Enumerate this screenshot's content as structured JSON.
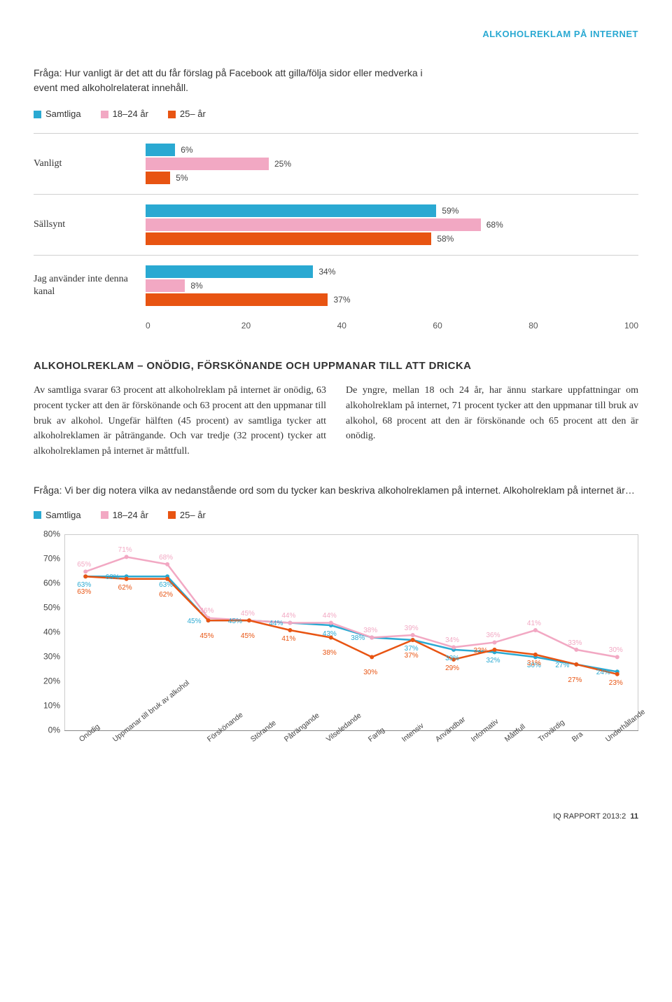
{
  "header": {
    "label": "ALKOHOLREKLAM PÅ INTERNET",
    "color": "#2aa9d2"
  },
  "q1": "Fråga: Hur vanligt är det att du får förslag på Facebook att gilla/följa sidor eller medverka i event med alkoholrelaterat innehåll.",
  "legend": [
    {
      "label": "Samtliga",
      "color": "#2aa9d2"
    },
    {
      "label": "18–24 år",
      "color": "#f2a8c3"
    },
    {
      "label": "25– år",
      "color": "#e85412"
    }
  ],
  "barChart": {
    "xmax": 100,
    "ticks": [
      "0",
      "20",
      "40",
      "60",
      "80",
      "100"
    ],
    "groups": [
      {
        "label": "Vanligt",
        "bars": [
          {
            "v": 6,
            "txt": "6%",
            "c": "#2aa9d2"
          },
          {
            "v": 25,
            "txt": "25%",
            "c": "#f2a8c3"
          },
          {
            "v": 5,
            "txt": "5%",
            "c": "#e85412"
          }
        ]
      },
      {
        "label": "Sällsynt",
        "bars": [
          {
            "v": 59,
            "txt": "59%",
            "c": "#2aa9d2"
          },
          {
            "v": 68,
            "txt": "68%",
            "c": "#f2a8c3"
          },
          {
            "v": 58,
            "txt": "58%",
            "c": "#e85412"
          }
        ]
      },
      {
        "label": "Jag använder inte denna kanal",
        "bars": [
          {
            "v": 34,
            "txt": "34%",
            "c": "#2aa9d2"
          },
          {
            "v": 8,
            "txt": "8%",
            "c": "#f2a8c3"
          },
          {
            "v": 37,
            "txt": "37%",
            "c": "#e85412"
          }
        ]
      }
    ]
  },
  "sectionTitle": "ALKOHOLREKLAM – ONÖDIG, FÖRSKÖNANDE OCH UPPMANAR TILL ATT DRICKA",
  "para1": "Av samtliga svarar 63 procent att alkoholreklam på internet är onödig, 63 procent tycker att den är förskönande och 63 procent att den uppmanar till bruk av alkohol. Ungefär hälften (45 procent) av samtliga tycker att alkoholreklamen är påträngande. Och var tredje (32 procent) tycker att alkoholreklamen på internet är måttfull.",
  "para2": "De yngre, mellan 18 och 24 år, har ännu starkare uppfattningar om alkoholreklam på internet, 71 procent tycker att den uppmanar till bruk av alkohol, 68 procent att den är förskönande och 65 procent att den är onödig.",
  "q2": "Fråga: Vi ber dig notera vilka av nedanstående ord som du tycker kan beskriva alkoholreklamen på internet. Alkoholreklam på internet är…",
  "lineChart": {
    "ymin": 0,
    "ymax": 80,
    "yticks": [
      {
        "v": 80,
        "t": "80%"
      },
      {
        "v": 70,
        "t": "70%"
      },
      {
        "v": 60,
        "t": "60%"
      },
      {
        "v": 50,
        "t": "50%"
      },
      {
        "v": 40,
        "t": "40%"
      },
      {
        "v": 30,
        "t": "30%"
      },
      {
        "v": 20,
        "t": "20%"
      },
      {
        "v": 10,
        "t": "10%"
      },
      {
        "v": 0,
        "t": "0%"
      }
    ],
    "categories": [
      "Onödig",
      "Uppmanar till bruk av alkohol",
      "Förskönande",
      "Störande",
      "Påträngande",
      "Vilseledande",
      "Farlig",
      "Intensiv",
      "Användbar",
      "Informativ",
      "Måttfull",
      "Trovärdig",
      "Bra",
      "Underhållande"
    ],
    "series": [
      {
        "name": "Samtliga",
        "color": "#2aa9d2",
        "values": [
          63,
          63,
          63,
          45,
          45,
          44,
          43,
          38,
          37,
          33,
          32,
          30,
          27,
          24
        ],
        "labels": [
          "63%",
          "63%",
          "63%",
          "45%",
          "45%",
          "44%",
          "43%",
          "38%",
          "37%",
          "33%",
          "32%",
          "30%",
          "27%",
          "24%"
        ],
        "labelPos": [
          "bl",
          "ml",
          "bl",
          "ml",
          "ml",
          "ml",
          "bl",
          "ml",
          "bl",
          "bl",
          "bl",
          "bl",
          "ml",
          "ml"
        ]
      },
      {
        "name": "18–24 år",
        "color": "#f2a8c3",
        "values": [
          65,
          71,
          68,
          46,
          45,
          44,
          44,
          38,
          39,
          34,
          36,
          41,
          33,
          30
        ],
        "labels": [
          "65%",
          "71%",
          "68%",
          "46%",
          "45%",
          "44%",
          "44%",
          "38%",
          "39%",
          "34%",
          "36%",
          "41%",
          "33%",
          "30%"
        ],
        "labelPos": [
          "tl",
          "tl",
          "tl",
          "tl",
          "tl",
          "tl",
          "tl",
          "tl",
          "tl",
          "tl",
          "tl",
          "tl",
          "tl",
          "tl"
        ]
      },
      {
        "name": "25– år",
        "color": "#e85412",
        "values": [
          63,
          62,
          62,
          45,
          45,
          41,
          38,
          30,
          37,
          29,
          33,
          31,
          27,
          23
        ],
        "labels": [
          "63%",
          "62%",
          "62%",
          "45%",
          "45%",
          "41%",
          "38%",
          "30%",
          "37%",
          "29%",
          "33%",
          "31%",
          "27%",
          "23%"
        ],
        "labelPos": [
          "bl2",
          "bl",
          "bl2",
          "bl2",
          "bl2",
          "bl",
          "bl2",
          "bl2",
          "bl2",
          "bl",
          "ml",
          "bl",
          "bl2",
          "bl"
        ]
      }
    ]
  },
  "footer": {
    "text": "IQ RAPPORT 2013:2",
    "page": "11"
  }
}
